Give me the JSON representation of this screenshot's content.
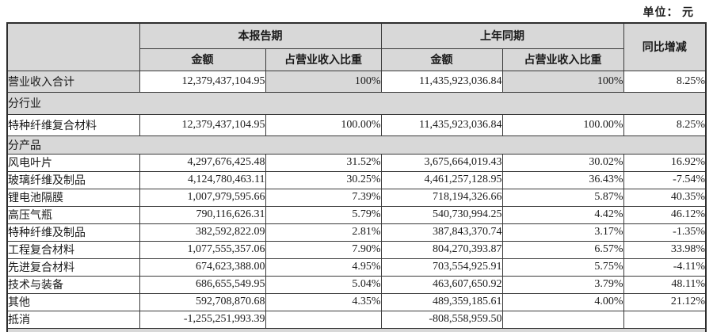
{
  "unit_label": "单位： 元",
  "colors": {
    "shaded_cell": "#d8d8d8",
    "border": "#3a3a3a",
    "text": "#1a1a1a"
  },
  "table": {
    "header": {
      "current_period": "本报告期",
      "prior_period": "上年同期",
      "yoy_change": "同比增减",
      "amount": "金额",
      "revenue_share": "占营业收入比重"
    },
    "rows": [
      {
        "type": "data",
        "variant": "total",
        "label": "营业收入合计",
        "cells": [
          "12,379,437,104.95",
          "100%",
          "11,435,923,036.84",
          "100%",
          "8.25%"
        ]
      },
      {
        "type": "section",
        "label": "分行业"
      },
      {
        "type": "data",
        "label": "特种纤维复合材料",
        "cells": [
          "12,379,437,104.95",
          "100.00%",
          "11,435,923,036.84",
          "100.00%",
          "8.25%"
        ]
      },
      {
        "type": "section",
        "label": "分产品"
      },
      {
        "type": "data",
        "label": "风电叶片",
        "cells": [
          "4,297,676,425.48",
          "31.52%",
          "3,675,664,019.43",
          "30.02%",
          "16.92%"
        ]
      },
      {
        "type": "data",
        "label": "玻璃纤维及制品",
        "cells": [
          "4,124,780,463.11",
          "30.25%",
          "4,461,257,128.95",
          "36.43%",
          "-7.54%"
        ]
      },
      {
        "type": "data",
        "label": "锂电池隔膜",
        "cells": [
          "1,007,979,595.66",
          "7.39%",
          "718,194,326.66",
          "5.87%",
          "40.35%"
        ]
      },
      {
        "type": "data",
        "label": "高压气瓶",
        "cells": [
          "790,116,626.31",
          "5.79%",
          "540,730,994.25",
          "4.42%",
          "46.12%"
        ]
      },
      {
        "type": "data",
        "label": "特种纤维及制品",
        "cells": [
          "382,592,822.09",
          "2.81%",
          "387,843,370.74",
          "3.17%",
          "-1.35%"
        ]
      },
      {
        "type": "data",
        "label": "工程复合材料",
        "cells": [
          "1,077,555,357.06",
          "7.90%",
          "804,270,393.87",
          "6.57%",
          "33.98%"
        ]
      },
      {
        "type": "data",
        "label": "先进复合材料",
        "cells": [
          "674,623,388.00",
          "4.95%",
          "703,554,925.91",
          "5.75%",
          "-4.11%"
        ]
      },
      {
        "type": "data",
        "label": "技术与装备",
        "cells": [
          "686,655,549.95",
          "5.04%",
          "463,607,650.92",
          "3.79%",
          "48.11%"
        ]
      },
      {
        "type": "data",
        "label": "其他",
        "cells": [
          "592,708,870.68",
          "4.35%",
          "489,359,185.61",
          "4.00%",
          "21.12%"
        ]
      },
      {
        "type": "data",
        "label": "抵消",
        "cells": [
          "-1,255,251,993.39",
          "",
          "-808,558,959.50",
          "",
          ""
        ]
      },
      {
        "type": "section",
        "label": "",
        "partial": true
      }
    ]
  }
}
